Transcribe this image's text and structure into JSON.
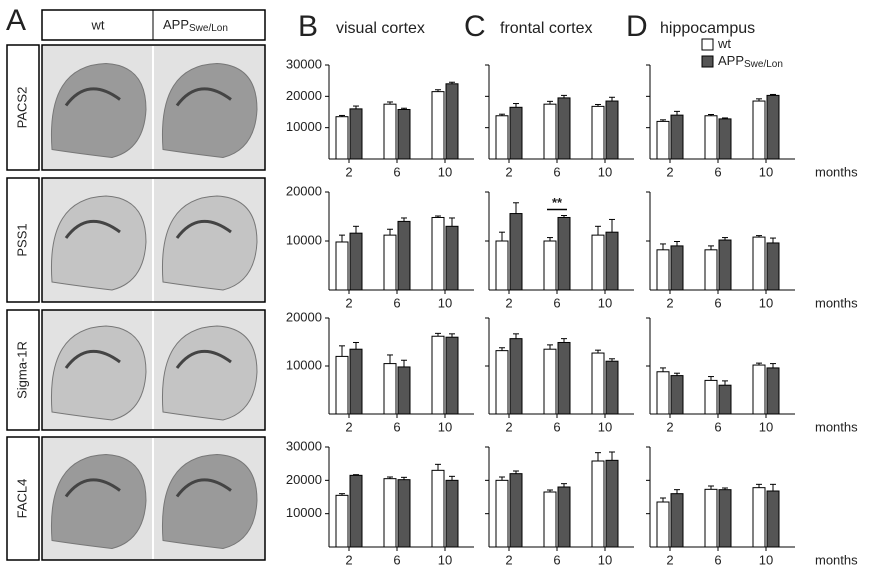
{
  "panel_a": {
    "letter": "A",
    "columns": [
      {
        "text": "wt"
      },
      {
        "text": "APP",
        "sub": "Swe/Lon"
      }
    ],
    "rows": [
      "PACS2",
      "PSS1",
      "Sigma-1R",
      "FACL4"
    ]
  },
  "panels": [
    {
      "letter": "B",
      "title": "visual cortex"
    },
    {
      "letter": "C",
      "title": "frontal cortex"
    },
    {
      "letter": "D",
      "title": "hippocampus"
    }
  ],
  "legend": {
    "series": [
      {
        "name": "wt",
        "color": "#ffffff"
      },
      {
        "name": "APP",
        "sub": "Swe/Lon",
        "color": "#555555"
      }
    ]
  },
  "chart_data": [
    {
      "type": "bar",
      "categories": [
        "2",
        "6",
        "10"
      ],
      "ylim": [
        0,
        30000
      ],
      "yticks": [
        10000,
        20000,
        30000
      ],
      "ytick_labels": true,
      "series": [
        {
          "color": "#ffffff",
          "values": [
            13500,
            17500,
            21500
          ],
          "errors": [
            400,
            700,
            600
          ]
        },
        {
          "color": "#555555",
          "values": [
            16000,
            15800,
            24000
          ],
          "errors": [
            900,
            400,
            500
          ]
        }
      ]
    },
    {
      "type": "bar",
      "categories": [
        "2",
        "6",
        "10"
      ],
      "ylim": [
        0,
        30000
      ],
      "yticks": [
        10000,
        20000,
        30000
      ],
      "ytick_labels": false,
      "series": [
        {
          "color": "#ffffff",
          "values": [
            13800,
            17500,
            16800
          ],
          "errors": [
            500,
            900,
            600
          ]
        },
        {
          "color": "#555555",
          "values": [
            16500,
            19500,
            18500
          ],
          "errors": [
            1200,
            800,
            1200
          ]
        }
      ]
    },
    {
      "type": "bar",
      "categories": [
        "2",
        "6",
        "10"
      ],
      "ylim": [
        0,
        30000
      ],
      "yticks": [
        10000,
        20000,
        30000
      ],
      "ytick_labels": false,
      "xlabel": "months",
      "series": [
        {
          "color": "#ffffff",
          "values": [
            12000,
            13800,
            18500
          ],
          "errors": [
            500,
            400,
            700
          ]
        },
        {
          "color": "#555555",
          "values": [
            14000,
            12800,
            20300
          ],
          "errors": [
            1200,
            300,
            300
          ]
        }
      ]
    },
    {
      "type": "bar",
      "categories": [
        "2",
        "6",
        "10"
      ],
      "ylim": [
        0,
        20000
      ],
      "yticks": [
        10000,
        20000
      ],
      "ytick_labels": true,
      "series": [
        {
          "color": "#ffffff",
          "values": [
            9800,
            11200,
            14800
          ],
          "errors": [
            1400,
            1200,
            300
          ]
        },
        {
          "color": "#555555",
          "values": [
            11600,
            14000,
            13000
          ],
          "errors": [
            1400,
            700,
            1700
          ]
        }
      ]
    },
    {
      "type": "bar",
      "categories": [
        "2",
        "6",
        "10"
      ],
      "ylim": [
        0,
        20000
      ],
      "yticks": [
        10000,
        20000
      ],
      "ytick_labels": false,
      "annotation": {
        "text": "**",
        "category": "6"
      },
      "series": [
        {
          "color": "#ffffff",
          "values": [
            10000,
            10000,
            11200
          ],
          "errors": [
            1800,
            700,
            1800
          ]
        },
        {
          "color": "#555555",
          "values": [
            15600,
            14800,
            11800
          ],
          "errors": [
            2200,
            400,
            2600
          ]
        }
      ]
    },
    {
      "type": "bar",
      "categories": [
        "2",
        "6",
        "10"
      ],
      "ylim": [
        0,
        20000
      ],
      "yticks": [
        10000,
        20000
      ],
      "ytick_labels": false,
      "xlabel": "months",
      "series": [
        {
          "color": "#ffffff",
          "values": [
            8200,
            8200,
            10800
          ],
          "errors": [
            1200,
            800,
            300
          ]
        },
        {
          "color": "#555555",
          "values": [
            9000,
            10200,
            9600
          ],
          "errors": [
            900,
            500,
            1000
          ]
        }
      ]
    },
    {
      "type": "bar",
      "categories": [
        "2",
        "6",
        "10"
      ],
      "ylim": [
        0,
        20000
      ],
      "yticks": [
        10000,
        20000
      ],
      "ytick_labels": true,
      "series": [
        {
          "color": "#ffffff",
          "values": [
            12000,
            10500,
            16200
          ],
          "errors": [
            2200,
            1800,
            600
          ]
        },
        {
          "color": "#555555",
          "values": [
            13500,
            9800,
            16000
          ],
          "errors": [
            1400,
            1400,
            700
          ]
        }
      ]
    },
    {
      "type": "bar",
      "categories": [
        "2",
        "6",
        "10"
      ],
      "ylim": [
        0,
        20000
      ],
      "yticks": [
        10000,
        20000
      ],
      "ytick_labels": false,
      "series": [
        {
          "color": "#ffffff",
          "values": [
            13200,
            13500,
            12700
          ],
          "errors": [
            600,
            900,
            600
          ]
        },
        {
          "color": "#555555",
          "values": [
            15700,
            14900,
            11000
          ],
          "errors": [
            1000,
            800,
            500
          ]
        }
      ]
    },
    {
      "type": "bar",
      "categories": [
        "2",
        "6",
        "10"
      ],
      "ylim": [
        0,
        20000
      ],
      "yticks": [
        10000,
        20000
      ],
      "ytick_labels": false,
      "xlabel": "months",
      "series": [
        {
          "color": "#ffffff",
          "values": [
            8800,
            7000,
            10200
          ],
          "errors": [
            800,
            800,
            400
          ]
        },
        {
          "color": "#555555",
          "values": [
            8000,
            6000,
            9600
          ],
          "errors": [
            500,
            900,
            900
          ]
        }
      ]
    },
    {
      "type": "bar",
      "categories": [
        "2",
        "6",
        "10"
      ],
      "ylim": [
        0,
        30000
      ],
      "yticks": [
        10000,
        20000,
        30000
      ],
      "ytick_labels": true,
      "series": [
        {
          "color": "#ffffff",
          "values": [
            15500,
            20500,
            23000
          ],
          "errors": [
            500,
            500,
            1800
          ]
        },
        {
          "color": "#555555",
          "values": [
            21500,
            20200,
            20000
          ],
          "errors": [
            200,
            700,
            1200
          ]
        }
      ]
    },
    {
      "type": "bar",
      "categories": [
        "2",
        "6",
        "10"
      ],
      "ylim": [
        0,
        30000
      ],
      "yticks": [
        10000,
        20000,
        30000
      ],
      "ytick_labels": false,
      "series": [
        {
          "color": "#ffffff",
          "values": [
            20000,
            16500,
            25800
          ],
          "errors": [
            1000,
            600,
            2500
          ]
        },
        {
          "color": "#555555",
          "values": [
            22000,
            18000,
            26000
          ],
          "errors": [
            800,
            1000,
            2500
          ]
        }
      ]
    },
    {
      "type": "bar",
      "categories": [
        "2",
        "6",
        "10"
      ],
      "ylim": [
        0,
        30000
      ],
      "yticks": [
        10000,
        20000,
        30000
      ],
      "ytick_labels": false,
      "xlabel": "months",
      "series": [
        {
          "color": "#ffffff",
          "values": [
            13500,
            17300,
            17800
          ],
          "errors": [
            1200,
            1000,
            1000
          ]
        },
        {
          "color": "#555555",
          "values": [
            16000,
            17200,
            16800
          ],
          "errors": [
            1200,
            500,
            2000
          ]
        }
      ]
    }
  ]
}
